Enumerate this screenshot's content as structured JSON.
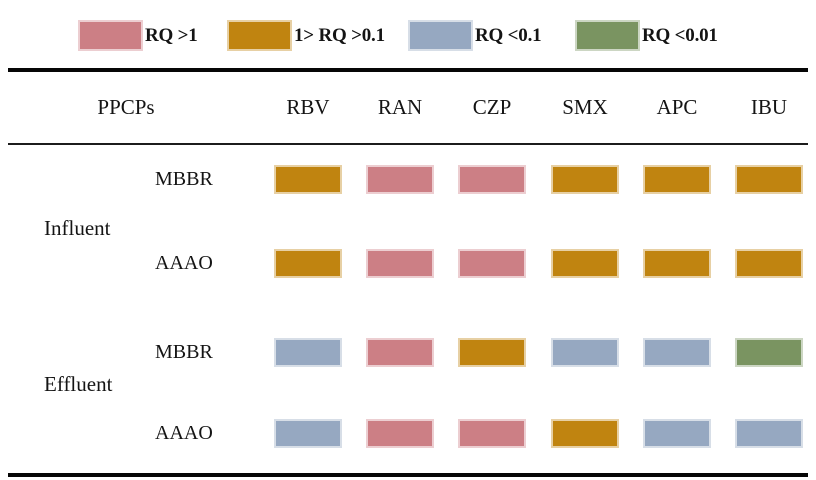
{
  "figure": {
    "background": "#ffffff",
    "text_color": "#141414",
    "rule_color": "#060606"
  },
  "legend": {
    "items": [
      {
        "name": "rq-gt-1",
        "label": "RQ >1",
        "color": "#cc7f85"
      },
      {
        "name": "rq-between-01-and-1",
        "label": "1> RQ >0.1",
        "color": "#c08410"
      },
      {
        "name": "rq-lt-01",
        "label": "RQ <0.1",
        "color": "#96a8c1"
      },
      {
        "name": "rq-lt-001",
        "label": "RQ <0.01",
        "color": "#7a9461"
      }
    ]
  },
  "table": {
    "row_header": "PPCPs",
    "columns": [
      "RBV",
      "RAN",
      "CZP",
      "SMX",
      "APC",
      "IBU"
    ],
    "groups": [
      {
        "label": "Influent",
        "rows": [
          {
            "label": "MBBR",
            "values": [
              "1> RQ >0.1",
              "RQ >1",
              "RQ >1",
              "1> RQ >0.1",
              "1> RQ >0.1",
              "1> RQ >0.1"
            ]
          },
          {
            "label": "AAAO",
            "values": [
              "1> RQ >0.1",
              "RQ >1",
              "RQ >1",
              "1> RQ >0.1",
              "1> RQ >0.1",
              "1> RQ >0.1"
            ]
          }
        ]
      },
      {
        "label": "Effluent",
        "rows": [
          {
            "label": "MBBR",
            "values": [
              "RQ <0.1",
              "RQ >1",
              "1> RQ >0.1",
              "RQ <0.1",
              "RQ <0.1",
              "RQ <0.01"
            ]
          },
          {
            "label": "AAAO",
            "values": [
              "RQ <0.1",
              "RQ >1",
              "RQ >1",
              "1> RQ >0.1",
              "RQ <0.1",
              "RQ <0.1"
            ]
          }
        ]
      }
    ]
  },
  "chart_data": {
    "type": "heatmap",
    "title": "",
    "columns": [
      "RBV",
      "RAN",
      "CZP",
      "SMX",
      "APC",
      "IBU"
    ],
    "rows": [
      "Influent MBBR",
      "Influent AAAO",
      "Effluent MBBR",
      "Effluent AAAO"
    ],
    "legend": [
      "RQ >1",
      "1> RQ >0.1",
      "RQ <0.1",
      "RQ <0.01"
    ],
    "legend_colors": [
      "#cc7f85",
      "#c08410",
      "#96a8c1",
      "#7a9461"
    ],
    "legend_position": "top",
    "values": [
      [
        "1> RQ >0.1",
        "RQ >1",
        "RQ >1",
        "1> RQ >0.1",
        "1> RQ >0.1",
        "1> RQ >0.1"
      ],
      [
        "1> RQ >0.1",
        "RQ >1",
        "RQ >1",
        "1> RQ >0.1",
        "1> RQ >0.1",
        "1> RQ >0.1"
      ],
      [
        "RQ <0.1",
        "RQ >1",
        "1> RQ >0.1",
        "RQ <0.1",
        "RQ <0.1",
        "RQ <0.01"
      ],
      [
        "RQ <0.1",
        "RQ >1",
        "RQ >1",
        "1> RQ >0.1",
        "RQ <0.1",
        "RQ <0.1"
      ]
    ]
  }
}
